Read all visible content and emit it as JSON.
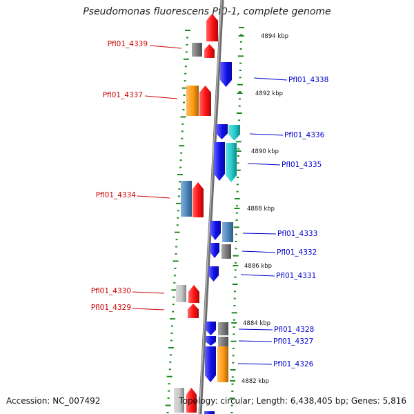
{
  "title": "Pseudomonas fluorescens Pf0-1, complete genome",
  "accession_text": "Accession: NC_007492",
  "topology_text": "Topology: circular; Length: 6,438,405 bp; Genes: 5,816",
  "colors": {
    "red": "#ff1010",
    "blue": "#1010ee",
    "orange": "#ff9a10",
    "cyan": "#22cccc",
    "steelblue": "#4a86c0",
    "gray": "#777777",
    "lightgray": "#c8c8c8",
    "ruler": "#1a8a1a",
    "backbone": "#888888"
  },
  "kbp_labels": [
    "4894 kbp",
    "4892 kbp",
    "4890 kbp",
    "4888 kbp",
    "4886 kbp",
    "4884 kbp",
    "4882 kbp"
  ],
  "gene_labels": {
    "left": [
      "Pfl01_4339",
      "Pfl01_4337",
      "Pfl01_4334",
      "Pfl01_4330",
      "Pfl01_4329"
    ],
    "right": [
      "Pfl01_4338",
      "Pfl01_4336",
      "Pfl01_4335",
      "Pfl01_4333",
      "Pfl01_4332",
      "Pfl01_4331",
      "Pfl01_4328",
      "Pfl01_4327",
      "Pfl01_4326"
    ]
  }
}
